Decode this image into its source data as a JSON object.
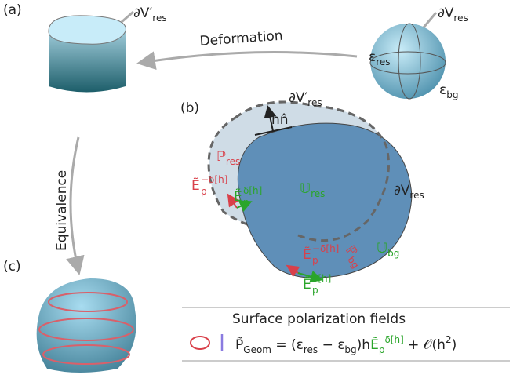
{
  "panels": {
    "a": "(a)",
    "b": "(b)",
    "c": "(c)"
  },
  "labels": [
    {
      "base": "∂V′",
      "sub": "res"
    },
    {
      "base": "∂V",
      "sub": "res"
    },
    {
      "text": "Deformation"
    },
    {
      "base": "ε",
      "sub": "res"
    },
    {
      "base": "ε",
      "sub": "bg"
    },
    {
      "base": "∂V′",
      "sub": "res"
    },
    {
      "text": "hn̂"
    },
    {
      "base": "ℙ",
      "sub": "res"
    },
    {
      "base": "𝕌",
      "sub": "res"
    },
    {
      "base": "∂V",
      "sub": "res"
    },
    {
      "base": "Ẽ",
      "sub": "p",
      "sup": "−δ[h]"
    },
    {
      "base": "Ẽ",
      "sub": "p",
      "sup": "δ[h]"
    },
    {
      "base": "ℙ",
      "sub": "bg"
    },
    {
      "base": "𝕌",
      "sub": "bg"
    },
    {
      "base": "Ẽ",
      "sub": "p",
      "sup": "−δ[h]"
    },
    {
      "base": "Ẽ",
      "sub": "p",
      "sup": "δ[h]"
    },
    {
      "text": "Equivalence"
    }
  ],
  "box": {
    "title": "Surface polarization fields",
    "formula": [
      "P̃",
      "Geom",
      " = (ε",
      "res",
      " − ε",
      "bg",
      ")h",
      "Ẽ",
      "p",
      "δ[h]",
      " + 𝒪(h",
      "2",
      ")"
    ]
  }
}
